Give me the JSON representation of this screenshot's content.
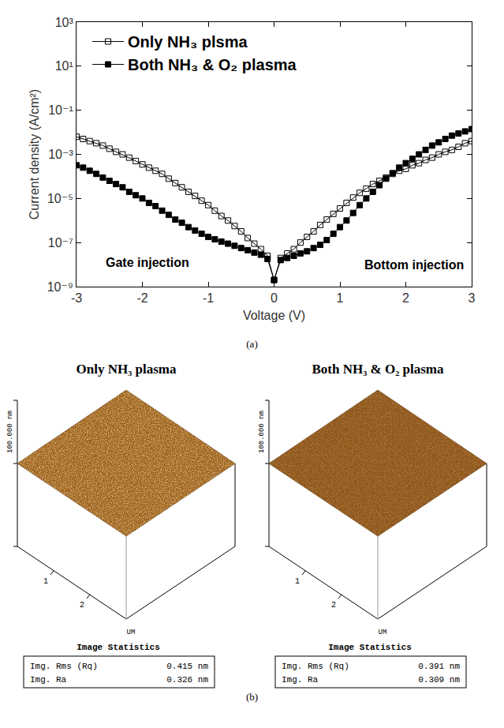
{
  "chart_data": {
    "type": "line",
    "caption": "(a)",
    "x_label": "Voltage (V)",
    "y_label": "Current density (A/cm²)",
    "log": "y",
    "grid": false,
    "legend": "upper left",
    "xlim": [
      -3,
      3
    ],
    "xticks": [
      -3,
      -2,
      -1,
      0,
      1,
      2,
      3
    ],
    "ylim": [
      1e-09,
      1000
    ],
    "yticks": [
      {
        "value": 1e-09,
        "label": "10⁻⁹"
      },
      {
        "value": 1e-07,
        "label": "10⁻⁷"
      },
      {
        "value": 1e-05,
        "label": "10⁻⁵"
      },
      {
        "value": 0.001,
        "label": "10⁻³"
      },
      {
        "value": 0.1,
        "label": "10⁻¹"
      },
      {
        "value": 10,
        "label": "10¹"
      },
      {
        "value": 1000,
        "label": "10³"
      }
    ],
    "annotations": [
      "Gate injection",
      "Bottom injection"
    ],
    "x": [
      -3,
      -2.9,
      -2.8,
      -2.7,
      -2.6,
      -2.5,
      -2.4,
      -2.3,
      -2.2,
      -2.1,
      -2,
      -1.9,
      -1.8,
      -1.7,
      -1.6,
      -1.5,
      -1.4,
      -1.3,
      -1.2,
      -1.1,
      -1,
      -0.9,
      -0.8,
      -0.7,
      -0.6,
      -0.5,
      -0.4,
      -0.3,
      -0.2,
      -0.1,
      0,
      0.1,
      0.2,
      0.3,
      0.4,
      0.5,
      0.6,
      0.7,
      0.8,
      0.9,
      1,
      1.1,
      1.2,
      1.3,
      1.4,
      1.5,
      1.6,
      1.7,
      1.8,
      1.9,
      2,
      2.1,
      2.2,
      2.3,
      2.4,
      2.5,
      2.6,
      2.7,
      2.8,
      2.9,
      3
    ],
    "series": [
      {
        "name": "Only NH₃ plsma",
        "color": "#000000",
        "marker": "open square",
        "line_style": "solid",
        "values": [
          0.0063,
          0.005,
          0.004,
          0.0032,
          0.0025,
          0.0018,
          0.0013,
          0.001,
          0.00071,
          0.0005,
          0.00035,
          0.00025,
          0.00018,
          0.00013,
          7.9e-05,
          5e-05,
          3.2e-05,
          2e-05,
          1.3e-05,
          7.9e-06,
          5e-06,
          2.8e-06,
          1.6e-06,
          1e-06,
          5.6e-07,
          3.2e-07,
          1.6e-07,
          8.9e-08,
          5e-08,
          2.5e-08,
          2e-09,
          2e-08,
          3.2e-08,
          5e-08,
          1e-07,
          1.8e-07,
          3.2e-07,
          6.3e-07,
          1.1e-06,
          2e-06,
          3.5e-06,
          6.3e-06,
          1.1e-05,
          1.8e-05,
          2.8e-05,
          4.5e-05,
          6.3e-05,
          8.9e-05,
          0.00013,
          0.00018,
          0.00022,
          0.00032,
          0.0004,
          0.00056,
          0.00071,
          0.001,
          0.0013,
          0.0016,
          0.0022,
          0.0032,
          0.004
        ]
      },
      {
        "name": "Both NH₃ & O₂ plasma",
        "color": "#000000",
        "marker": "filled square",
        "line_style": "solid",
        "values": [
          0.00032,
          0.00025,
          0.00018,
          0.00013,
          8.9e-05,
          6.3e-05,
          4.5e-05,
          3.2e-05,
          2e-05,
          1.4e-05,
          1e-05,
          6.3e-06,
          4.5e-06,
          2.8e-06,
          1.8e-06,
          1.1e-06,
          7.9e-07,
          5e-07,
          3.5e-07,
          2.5e-07,
          1.8e-07,
          1.4e-07,
          1.1e-07,
          8.9e-08,
          7.1e-08,
          5.6e-08,
          4.5e-08,
          3.5e-08,
          2.8e-08,
          1.8e-08,
          2e-09,
          1.6e-08,
          2e-08,
          2.5e-08,
          3.2e-08,
          4e-08,
          5.6e-08,
          7.9e-08,
          1.3e-07,
          2.5e-07,
          5e-07,
          1e-06,
          2.2e-06,
          5e-06,
          1e-05,
          2e-05,
          4e-05,
          7.9e-05,
          0.00014,
          0.00025,
          0.0004,
          0.00063,
          0.001,
          0.0016,
          0.0025,
          0.0035,
          0.005,
          0.0071,
          0.0089,
          0.011,
          0.014
        ]
      }
    ]
  },
  "afm": {
    "caption": "(b)",
    "panels": [
      {
        "title": "Only NH₃ plasma",
        "z_label": "100.000 nm",
        "axis_ticks": [
          "1",
          "2"
        ],
        "axis_unit": "UM",
        "stats_title": "Image Statistics",
        "stats": [
          {
            "name": "Img. Rms (Rq)",
            "value": "0.415 nm"
          },
          {
            "name": "Img. Ra",
            "value": "0.326 nm"
          }
        ]
      },
      {
        "title": "Both NH₃ & O₂ plasma",
        "z_label": "100.000 nm",
        "axis_ticks": [
          "1",
          "2"
        ],
        "axis_unit": "UM",
        "stats_title": "Image Statistics",
        "stats": [
          {
            "name": "Img. Rms (Rq)",
            "value": "0.391 nm"
          },
          {
            "name": "Img. Ra",
            "value": "0.309 nm"
          }
        ]
      }
    ]
  }
}
